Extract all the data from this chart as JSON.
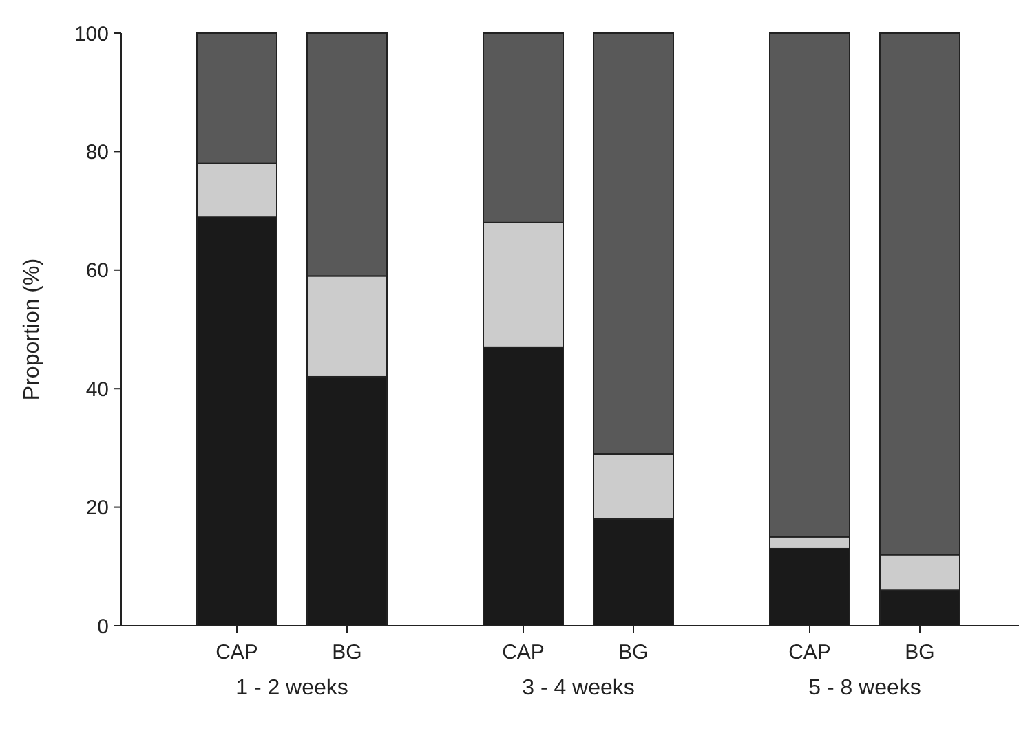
{
  "chart_data": {
    "type": "bar",
    "stacked": true,
    "ylabel": "Proportion (%)",
    "categories": [
      "CAP",
      "BG",
      "CAP",
      "BG",
      "CAP",
      "BG"
    ],
    "series": [
      {
        "color": "#1a1a1a",
        "values": [
          69,
          42,
          47,
          18,
          13,
          6
        ]
      },
      {
        "color": "#cccccc",
        "values": [
          9,
          17,
          21,
          11,
          2,
          6
        ]
      },
      {
        "color": "#595959",
        "values": [
          22,
          41,
          32,
          71,
          85,
          88
        ]
      }
    ],
    "ylim": [
      0,
      100
    ],
    "yticks": [
      0,
      20,
      40,
      60,
      80,
      100
    ],
    "annotations": [
      "1 - 2 weeks",
      "3 - 4 weeks",
      "5 - 8 weeks"
    ]
  }
}
